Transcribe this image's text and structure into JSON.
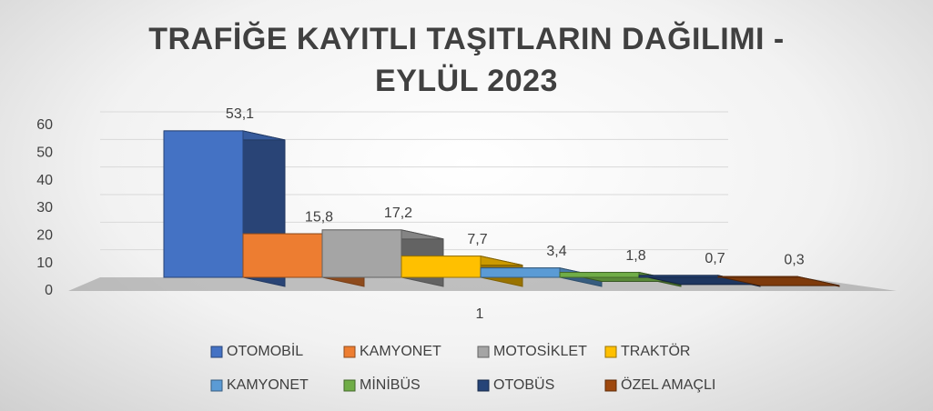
{
  "chart_data": {
    "type": "bar3d",
    "title": "TRAFİĞE KAYITLI TAŞITLARIN DAĞILIMI - EYLÜL 2023",
    "categories": [
      "1"
    ],
    "series": [
      {
        "name": "OTOMOBİL",
        "color": "#4472c4",
        "values": [
          53.1
        ],
        "value_labels": [
          "53,1"
        ]
      },
      {
        "name": "KAMYONET",
        "color": "#ed7d31",
        "values": [
          15.8
        ],
        "value_labels": [
          "15,8"
        ]
      },
      {
        "name": "MOTOSİKLET",
        "color": "#a5a5a5",
        "values": [
          17.2
        ],
        "value_labels": [
          "17,2"
        ]
      },
      {
        "name": "TRAKTÖR",
        "color": "#ffc000",
        "values": [
          7.7
        ],
        "value_labels": [
          "7,7"
        ]
      },
      {
        "name": "KAMYONET",
        "color": "#5b9bd5",
        "values": [
          3.4
        ],
        "value_labels": [
          "3,4"
        ]
      },
      {
        "name": "MİNİBÜS",
        "color": "#70ad47",
        "values": [
          1.8
        ],
        "value_labels": [
          "1,8"
        ]
      },
      {
        "name": "OTOBÜS",
        "color": "#264478",
        "values": [
          0.7
        ],
        "value_labels": [
          "0,7"
        ]
      },
      {
        "name": "ÖZEL AMAÇLI",
        "color": "#9e480e",
        "values": [
          0.3
        ],
        "value_labels": [
          "0,3"
        ]
      }
    ],
    "ylim": [
      0,
      60
    ],
    "yticks": [
      0,
      10,
      20,
      30,
      40,
      50,
      60
    ],
    "grid": true,
    "legend": "bottom"
  }
}
